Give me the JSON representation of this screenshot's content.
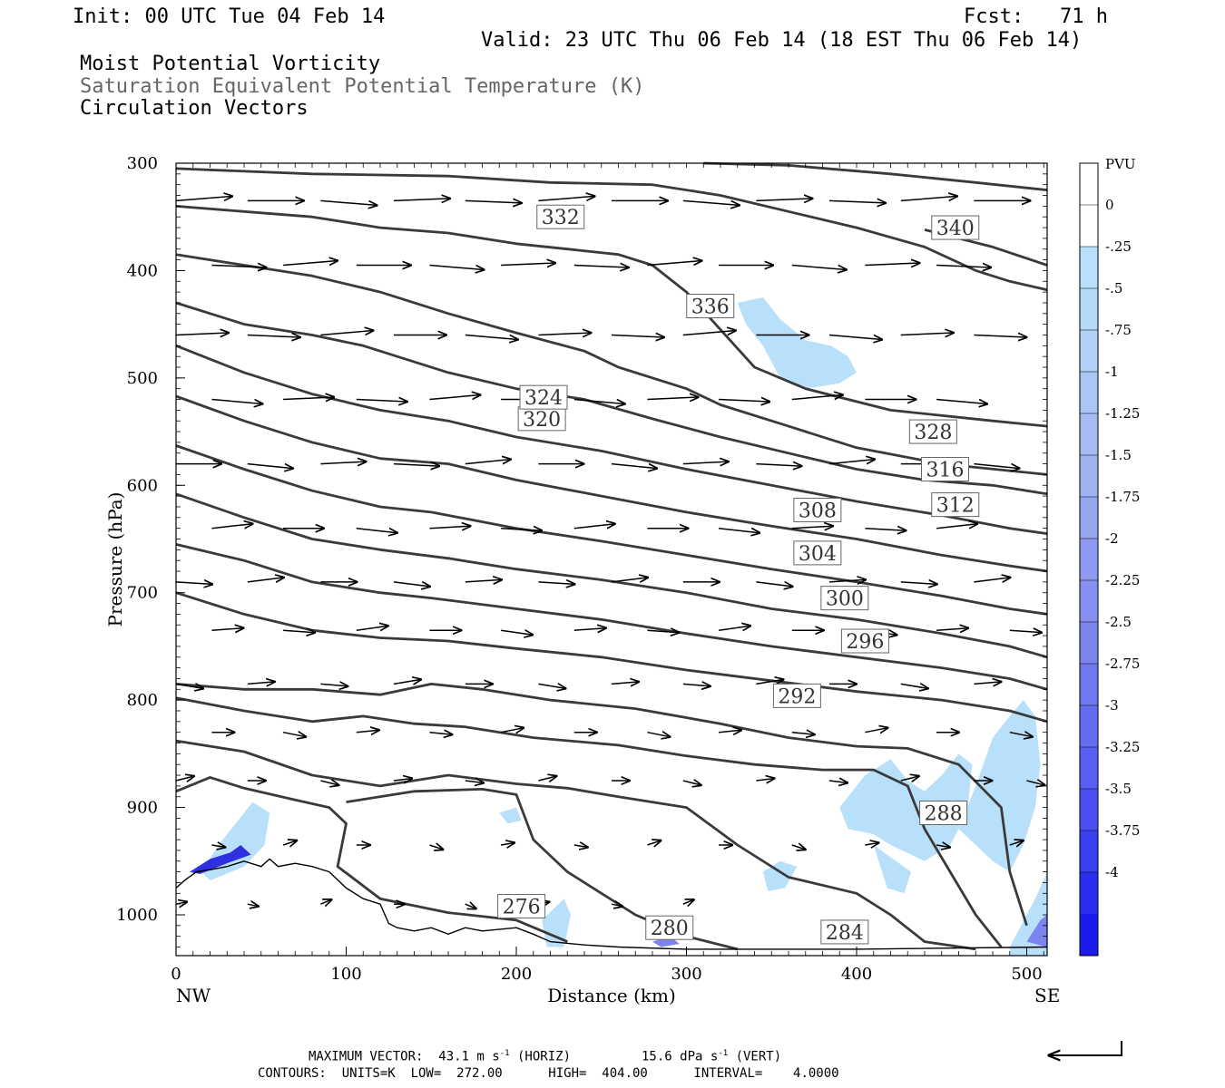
{
  "header": {
    "init": "Init: 00 UTC Tue 04 Feb 14",
    "fcst": "Fcst:   71 h",
    "valid": "Valid: 23 UTC Thu 06 Feb 14 (18 EST Thu 06 Feb 14)",
    "field1": "Moist Potential Vorticity",
    "field2": "Saturation Equivalent Potential Temperature (K)",
    "field3": "Circulation Vectors"
  },
  "footer": {
    "max_vector": "MAXIMUM VECTOR:  43.1 m s",
    "horiz_unit": "-1",
    "horiz_tail": " (HORIZ)",
    "vert_val": "15.6 dPa s",
    "vert_unit": "-1",
    "vert_tail": " (VERT)",
    "contours": "CONTOURS:  UNITS=K  LOW=  272.00      HIGH=  404.00      INTERVAL=    4.0000"
  },
  "colors": {
    "contour": "#3a3a3a",
    "pv_light": "#b8e0fa",
    "pv_dark": "#1010ee"
  },
  "chart_data": {
    "type": "contour-cross-section",
    "xlabel": "Distance (km)",
    "ylabel": "Pressure (hPa)",
    "xlim": [
      0,
      512
    ],
    "ylim": [
      1038,
      300
    ],
    "x_ticks": [
      "0",
      "100",
      "200",
      "300",
      "400",
      "500"
    ],
    "x_tick_values": [
      0,
      100,
      200,
      300,
      400,
      500
    ],
    "y_ticks": [
      "300",
      "400",
      "500",
      "600",
      "700",
      "800",
      "900",
      "1000"
    ],
    "y_tick_values": [
      300,
      400,
      500,
      600,
      700,
      800,
      900,
      1000
    ],
    "endpoints": {
      "left": "NW",
      "right": "SE"
    },
    "colorbar": {
      "unit": "PVU",
      "labels": [
        "0",
        "-.25",
        "-.5",
        "-.75",
        "-1",
        "-1.25",
        "-1.5",
        "-1.75",
        "-2",
        "-2.25",
        "-2.5",
        "-2.75",
        "-3",
        "-3.25",
        "-3.5",
        "-3.75",
        "-4"
      ],
      "colors": [
        "#ffffff",
        "#ffffff",
        "#b8e0fa",
        "#b4d8f8",
        "#b0d0f6",
        "#aac6f4",
        "#a4bcf2",
        "#9eb2f0",
        "#96a6ee",
        "#8e9af0",
        "#8690f0",
        "#7c84f0",
        "#7078f0",
        "#646cf2",
        "#5860f2",
        "#4a50f2",
        "#3a40f2",
        "#2a2ef0",
        "#1a1cee"
      ]
    },
    "contours": [
      {
        "label": "276",
        "points": [
          [
            0,
            885
          ],
          [
            20,
            872
          ],
          [
            40,
            882
          ],
          [
            70,
            893
          ],
          [
            90,
            900
          ],
          [
            100,
            915
          ],
          [
            95,
            955
          ],
          [
            120,
            985
          ],
          [
            160,
            998
          ],
          [
            200,
            1005
          ],
          [
            230,
            1025
          ]
        ],
        "label_at": [
          203,
          992
        ]
      },
      {
        "label": "280",
        "points": [
          [
            100,
            895
          ],
          [
            140,
            885
          ],
          [
            180,
            883
          ],
          [
            200,
            888
          ],
          [
            210,
            930
          ],
          [
            230,
            960
          ],
          [
            250,
            980
          ],
          [
            270,
            1000
          ],
          [
            300,
            1020
          ],
          [
            330,
            1032
          ]
        ],
        "label_at": [
          290,
          1012
        ]
      },
      {
        "label": "284",
        "points": [
          [
            0,
            838
          ],
          [
            40,
            848
          ],
          [
            80,
            870
          ],
          [
            120,
            880
          ],
          [
            160,
            870
          ],
          [
            200,
            878
          ],
          [
            230,
            882
          ],
          [
            260,
            890
          ],
          [
            300,
            900
          ],
          [
            330,
            935
          ],
          [
            360,
            965
          ],
          [
            400,
            980
          ],
          [
            420,
            1000
          ],
          [
            440,
            1025
          ],
          [
            470,
            1032
          ]
        ],
        "label_at": [
          393,
          1016
        ]
      },
      {
        "label": "288",
        "points": [
          [
            0,
            798
          ],
          [
            40,
            810
          ],
          [
            80,
            820
          ],
          [
            110,
            815
          ],
          [
            140,
            822
          ],
          [
            170,
            825
          ],
          [
            210,
            835
          ],
          [
            260,
            842
          ],
          [
            300,
            852
          ],
          [
            340,
            860
          ],
          [
            380,
            865
          ],
          [
            410,
            865
          ],
          [
            430,
            880
          ],
          [
            440,
            920
          ],
          [
            455,
            960
          ],
          [
            470,
            1000
          ],
          [
            485,
            1030
          ]
        ],
        "label_at": [
          451,
          905
        ]
      },
      {
        "label": "292",
        "points": [
          [
            0,
            785
          ],
          [
            40,
            790
          ],
          [
            80,
            790
          ],
          [
            120,
            795
          ],
          [
            150,
            785
          ],
          [
            180,
            790
          ],
          [
            220,
            800
          ],
          [
            270,
            808
          ],
          [
            320,
            822
          ],
          [
            360,
            835
          ],
          [
            400,
            843
          ],
          [
            430,
            845
          ],
          [
            460,
            860
          ],
          [
            485,
            900
          ],
          [
            490,
            960
          ],
          [
            500,
            1010
          ]
        ],
        "label_at": [
          365,
          796
        ]
      },
      {
        "label": "296",
        "points": [
          [
            0,
            700
          ],
          [
            40,
            720
          ],
          [
            80,
            735
          ],
          [
            120,
            742
          ],
          [
            160,
            745
          ],
          [
            200,
            752
          ],
          [
            250,
            760
          ],
          [
            300,
            772
          ],
          [
            350,
            782
          ],
          [
            400,
            792
          ],
          [
            450,
            800
          ],
          [
            490,
            810
          ],
          [
            512,
            820
          ]
        ],
        "label_at": [
          405,
          745
        ]
      },
      {
        "label": "300",
        "points": [
          [
            0,
            655
          ],
          [
            40,
            670
          ],
          [
            80,
            690
          ],
          [
            120,
            700
          ],
          [
            150,
            705
          ],
          [
            200,
            715
          ],
          [
            250,
            725
          ],
          [
            300,
            738
          ],
          [
            350,
            750
          ],
          [
            400,
            760
          ],
          [
            450,
            770
          ],
          [
            490,
            780
          ],
          [
            512,
            790
          ]
        ],
        "label_at": [
          393,
          705
        ]
      },
      {
        "label": "304",
        "points": [
          [
            0,
            608
          ],
          [
            40,
            630
          ],
          [
            80,
            650
          ],
          [
            120,
            660
          ],
          [
            160,
            668
          ],
          [
            200,
            678
          ],
          [
            250,
            688
          ],
          [
            300,
            700
          ],
          [
            350,
            715
          ],
          [
            400,
            725
          ],
          [
            450,
            738
          ],
          [
            490,
            750
          ],
          [
            512,
            760
          ]
        ],
        "label_at": [
          377,
          663
        ]
      },
      {
        "label": "308",
        "points": [
          [
            0,
            563
          ],
          [
            40,
            585
          ],
          [
            80,
            605
          ],
          [
            120,
            620
          ],
          [
            150,
            625
          ],
          [
            200,
            640
          ],
          [
            250,
            652
          ],
          [
            300,
            665
          ],
          [
            350,
            678
          ],
          [
            400,
            690
          ],
          [
            450,
            703
          ],
          [
            490,
            715
          ],
          [
            512,
            720
          ]
        ],
        "label_at": [
          377,
          623
        ]
      },
      {
        "label": "312",
        "points": [
          [
            0,
            517
          ],
          [
            40,
            540
          ],
          [
            80,
            560
          ],
          [
            120,
            575
          ],
          [
            160,
            580
          ],
          [
            200,
            595
          ],
          [
            250,
            610
          ],
          [
            300,
            625
          ],
          [
            350,
            638
          ],
          [
            400,
            650
          ],
          [
            450,
            665
          ],
          [
            490,
            675
          ],
          [
            512,
            680
          ]
        ],
        "label_at": [
          458,
          618
        ]
      },
      {
        "label": "316",
        "points": [
          [
            0,
            470
          ],
          [
            40,
            495
          ],
          [
            80,
            515
          ],
          [
            120,
            530
          ],
          [
            160,
            540
          ],
          [
            200,
            555
          ],
          [
            250,
            568
          ],
          [
            300,
            585
          ],
          [
            350,
            600
          ],
          [
            400,
            615
          ],
          [
            450,
            628
          ],
          [
            490,
            640
          ],
          [
            512,
            645
          ]
        ],
        "label_at": [
          452,
          585
        ]
      },
      {
        "label": "320",
        "points": [
          [
            0,
            430
          ],
          [
            40,
            450
          ],
          [
            80,
            460
          ],
          [
            110,
            470
          ],
          [
            130,
            480
          ],
          [
            160,
            495
          ],
          [
            200,
            510
          ],
          [
            240,
            520
          ],
          [
            280,
            538
          ],
          [
            320,
            555
          ],
          [
            360,
            570
          ],
          [
            400,
            585
          ],
          [
            440,
            595
          ],
          [
            480,
            600
          ],
          [
            512,
            608
          ]
        ],
        "label_at": [
          215,
          538
        ]
      },
      {
        "label": "324",
        "points": [
          [
            0,
            385
          ],
          [
            40,
            395
          ],
          [
            80,
            405
          ],
          [
            120,
            420
          ],
          [
            160,
            440
          ],
          [
            200,
            458
          ],
          [
            240,
            475
          ],
          [
            260,
            490
          ],
          [
            300,
            510
          ],
          [
            320,
            525
          ],
          [
            360,
            545
          ],
          [
            400,
            565
          ],
          [
            450,
            580
          ],
          [
            512,
            590
          ]
        ],
        "label_at": [
          216,
          518
        ]
      },
      {
        "label": "328",
        "points": [
          [
            0,
            340
          ],
          [
            40,
            345
          ],
          [
            80,
            350
          ],
          [
            120,
            360
          ],
          [
            160,
            365
          ],
          [
            200,
            375
          ],
          [
            230,
            380
          ],
          [
            260,
            385
          ],
          [
            280,
            395
          ],
          [
            300,
            420
          ],
          [
            320,
            455
          ],
          [
            340,
            490
          ],
          [
            370,
            510
          ],
          [
            420,
            530
          ],
          [
            480,
            540
          ],
          [
            512,
            545
          ]
        ],
        "label_at": [
          445,
          550
        ]
      },
      {
        "label": "332",
        "points": [
          [
            0,
            305
          ],
          [
            80,
            310
          ],
          [
            160,
            312
          ],
          [
            220,
            318
          ],
          [
            280,
            320
          ],
          [
            320,
            330
          ],
          [
            360,
            345
          ],
          [
            400,
            360
          ],
          [
            440,
            378
          ],
          [
            470,
            400
          ],
          [
            490,
            410
          ],
          [
            512,
            418
          ]
        ],
        "label_at": [
          226,
          350
        ]
      },
      {
        "label": "336",
        "points": [
          [
            310,
            300
          ],
          [
            360,
            302
          ],
          [
            420,
            310
          ],
          [
            470,
            318
          ],
          [
            512,
            325
          ]
        ],
        "label_at": [
          314,
          433
        ]
      },
      {
        "label": "340",
        "points": [
          [
            440,
            362
          ],
          [
            480,
            378
          ],
          [
            512,
            395
          ]
        ],
        "label_at": [
          458,
          360
        ]
      }
    ],
    "vector_levels_hpa": [
      335,
      395,
      460,
      520,
      580,
      640,
      690,
      735,
      785,
      830,
      875,
      935,
      990
    ],
    "max_vector_horiz": "43.1",
    "max_vector_vert": "15.6"
  }
}
